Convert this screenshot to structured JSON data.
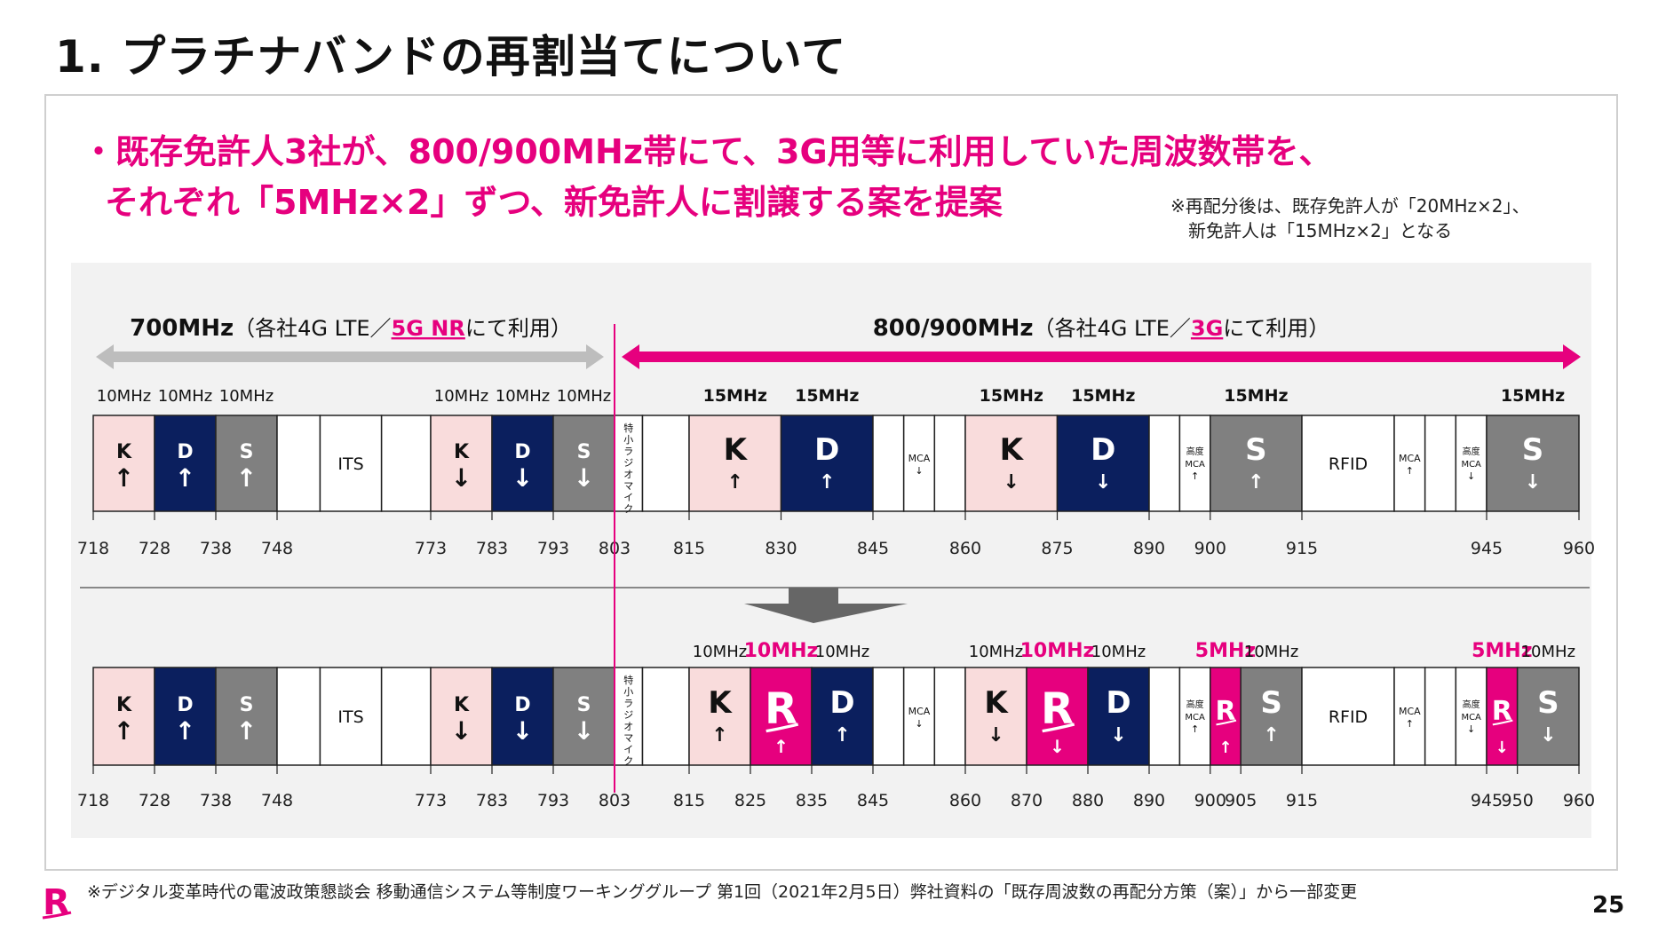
{
  "title": "1. プラチナバンドの再割当てについて",
  "lead": {
    "line1": "・既存免許人3社が、800/900MHz帯にて、3G用等に利用していた周波数帯を、",
    "line2": "それぞれ「5MHz×2」ずつ、新免許人に割譲する案を提案"
  },
  "note": {
    "line1": "※再配分後は、既存免許人が「20MHz×2」、",
    "line2": "新免許人は「15MHz×2」となる"
  },
  "band700": {
    "name": "700MHz",
    "pre": "（各社4G LTE／",
    "highlight": "5G NR",
    "post": "にて利用）"
  },
  "band800": {
    "name": "800/900MHz",
    "pre": "（各社4G LTE／",
    "highlight": "3G",
    "post": "にて利用）"
  },
  "colors": {
    "K": "#f9dcdc",
    "D": "#0b1f5e",
    "S": "#808080",
    "R": "#e6007e",
    "white": "#ffffff",
    "accent": "#e6007e",
    "gray_arrow": "#bdbdbd"
  },
  "mic_label": "特小ラジオマイク",
  "top_row": {
    "blocks": [
      {
        "s": 718,
        "e": 728,
        "t": "K",
        "l": "K",
        "a": "↑"
      },
      {
        "s": 728,
        "e": 738,
        "t": "D",
        "l": "D",
        "a": "↑"
      },
      {
        "s": 738,
        "e": 748,
        "t": "S",
        "l": "S",
        "a": "↑"
      },
      {
        "s": 748,
        "e": 755,
        "t": "W",
        "l": ""
      },
      {
        "s": 755,
        "e": 765,
        "t": "W",
        "l": "ITS"
      },
      {
        "s": 765,
        "e": 773,
        "t": "W",
        "l": ""
      },
      {
        "s": 773,
        "e": 783,
        "t": "K",
        "l": "K",
        "a": "↓"
      },
      {
        "s": 783,
        "e": 793,
        "t": "D",
        "l": "D",
        "a": "↓"
      },
      {
        "s": 793,
        "e": 803,
        "t": "S",
        "l": "S",
        "a": "↓"
      },
      {
        "s": 803,
        "e": 807.5,
        "t": "MIC"
      },
      {
        "s": 807.5,
        "e": 815,
        "t": "W",
        "l": ""
      },
      {
        "s": 815,
        "e": 830,
        "t": "K",
        "l": "K",
        "a": "↑",
        "big": true
      },
      {
        "s": 830,
        "e": 845,
        "t": "D",
        "l": "D",
        "a": "↑",
        "big": true
      },
      {
        "s": 845,
        "e": 850,
        "t": "W",
        "l": ""
      },
      {
        "s": 850,
        "e": 855,
        "t": "W",
        "l": "MCA",
        "a": "↓",
        "small": true
      },
      {
        "s": 855,
        "e": 860,
        "t": "W",
        "l": ""
      },
      {
        "s": 860,
        "e": 875,
        "t": "K",
        "l": "K",
        "a": "↓",
        "big": true
      },
      {
        "s": 875,
        "e": 890,
        "t": "D",
        "l": "D",
        "a": "↓",
        "big": true
      },
      {
        "s": 890,
        "e": 895,
        "t": "W",
        "l": ""
      },
      {
        "s": 895,
        "e": 900,
        "t": "W",
        "l": "高度|MCA",
        "a": "↑",
        "small": true
      },
      {
        "s": 900,
        "e": 915,
        "t": "S",
        "l": "S",
        "a": "↑",
        "big": true
      },
      {
        "s": 915,
        "e": 930,
        "t": "W",
        "l": "RFID"
      },
      {
        "s": 930,
        "e": 935,
        "t": "W",
        "l": "MCA",
        "a": "↑",
        "small": true
      },
      {
        "s": 935,
        "e": 940,
        "t": "W",
        "l": ""
      },
      {
        "s": 940,
        "e": 945,
        "t": "W",
        "l": "高度|MCA",
        "a": "↓",
        "small": true
      },
      {
        "s": 945,
        "e": 960,
        "t": "S",
        "l": "S",
        "a": "↓",
        "big": true
      }
    ],
    "ticks": [
      718,
      728,
      738,
      748,
      773,
      783,
      793,
      803,
      815,
      830,
      845,
      860,
      875,
      890,
      900,
      915,
      945,
      960
    ],
    "widths": [
      {
        "f": 718,
        "t": 728,
        "l": "10MHz"
      },
      {
        "f": 728,
        "t": 738,
        "l": "10MHz"
      },
      {
        "f": 738,
        "t": 748,
        "l": "10MHz"
      },
      {
        "f": 773,
        "t": 783,
        "l": "10MHz"
      },
      {
        "f": 783,
        "t": 793,
        "l": "10MHz"
      },
      {
        "f": 793,
        "t": 803,
        "l": "10MHz"
      },
      {
        "f": 815,
        "t": 830,
        "l": "15MHz",
        "b": true
      },
      {
        "f": 830,
        "t": 845,
        "l": "15MHz",
        "b": true
      },
      {
        "f": 860,
        "t": 875,
        "l": "15MHz",
        "b": true
      },
      {
        "f": 875,
        "t": 890,
        "l": "15MHz",
        "b": true
      },
      {
        "f": 900,
        "t": 915,
        "l": "15MHz",
        "b": true
      },
      {
        "f": 945,
        "t": 960,
        "l": "15MHz",
        "b": true
      }
    ]
  },
  "bottom_row": {
    "blocks": [
      {
        "s": 718,
        "e": 728,
        "t": "K",
        "l": "K",
        "a": "↑"
      },
      {
        "s": 728,
        "e": 738,
        "t": "D",
        "l": "D",
        "a": "↑"
      },
      {
        "s": 738,
        "e": 748,
        "t": "S",
        "l": "S",
        "a": "↑"
      },
      {
        "s": 748,
        "e": 755,
        "t": "W",
        "l": ""
      },
      {
        "s": 755,
        "e": 765,
        "t": "W",
        "l": "ITS"
      },
      {
        "s": 765,
        "e": 773,
        "t": "W",
        "l": ""
      },
      {
        "s": 773,
        "e": 783,
        "t": "K",
        "l": "K",
        "a": "↓"
      },
      {
        "s": 783,
        "e": 793,
        "t": "D",
        "l": "D",
        "a": "↓"
      },
      {
        "s": 793,
        "e": 803,
        "t": "S",
        "l": "S",
        "a": "↓"
      },
      {
        "s": 803,
        "e": 807.5,
        "t": "MIC"
      },
      {
        "s": 807.5,
        "e": 815,
        "t": "W",
        "l": ""
      },
      {
        "s": 815,
        "e": 825,
        "t": "K",
        "l": "K",
        "a": "↑",
        "big": true
      },
      {
        "s": 825,
        "e": 835,
        "t": "R",
        "l": "R",
        "a": "↑",
        "big": true
      },
      {
        "s": 835,
        "e": 845,
        "t": "D",
        "l": "D",
        "a": "↑",
        "big": true
      },
      {
        "s": 845,
        "e": 850,
        "t": "W",
        "l": ""
      },
      {
        "s": 850,
        "e": 855,
        "t": "W",
        "l": "MCA",
        "a": "↓",
        "small": true
      },
      {
        "s": 855,
        "e": 860,
        "t": "W",
        "l": ""
      },
      {
        "s": 860,
        "e": 870,
        "t": "K",
        "l": "K",
        "a": "↓",
        "big": true
      },
      {
        "s": 870,
        "e": 880,
        "t": "R",
        "l": "R",
        "a": "↓",
        "big": true
      },
      {
        "s": 880,
        "e": 890,
        "t": "D",
        "l": "D",
        "a": "↓",
        "big": true
      },
      {
        "s": 890,
        "e": 895,
        "t": "W",
        "l": ""
      },
      {
        "s": 895,
        "e": 900,
        "t": "W",
        "l": "高度|MCA",
        "a": "↑",
        "small": true
      },
      {
        "s": 900,
        "e": 905,
        "t": "R",
        "l": "R",
        "a": "↑"
      },
      {
        "s": 905,
        "e": 915,
        "t": "S",
        "l": "S",
        "a": "↑",
        "big": true
      },
      {
        "s": 915,
        "e": 930,
        "t": "W",
        "l": "RFID"
      },
      {
        "s": 930,
        "e": 935,
        "t": "W",
        "l": "MCA",
        "a": "↑",
        "small": true
      },
      {
        "s": 935,
        "e": 940,
        "t": "W",
        "l": ""
      },
      {
        "s": 940,
        "e": 945,
        "t": "W",
        "l": "高度|MCA",
        "a": "↓",
        "small": true
      },
      {
        "s": 945,
        "e": 950,
        "t": "R",
        "l": "R",
        "a": "↓"
      },
      {
        "s": 950,
        "e": 960,
        "t": "S",
        "l": "S",
        "a": "↓",
        "big": true
      }
    ],
    "ticks": [
      718,
      728,
      738,
      748,
      773,
      783,
      793,
      803,
      815,
      825,
      835,
      845,
      860,
      870,
      880,
      890,
      900,
      905,
      915,
      945,
      950,
      960
    ],
    "widths": [
      {
        "f": 815,
        "t": 825,
        "l": "10MHz"
      },
      {
        "f": 825,
        "t": 835,
        "l": "10MHz",
        "p": true
      },
      {
        "f": 835,
        "t": 845,
        "l": "10MHz"
      },
      {
        "f": 860,
        "t": 870,
        "l": "10MHz"
      },
      {
        "f": 870,
        "t": 880,
        "l": "10MHz",
        "p": true
      },
      {
        "f": 880,
        "t": 890,
        "l": "10MHz"
      },
      {
        "f": 900,
        "t": 905,
        "l": "5MHz",
        "p": true
      },
      {
        "f": 905,
        "t": 915,
        "l": "10MHz"
      },
      {
        "f": 945,
        "t": 950,
        "l": "5MHz",
        "p": true
      },
      {
        "f": 950,
        "t": 960,
        "l": "10MHz"
      }
    ]
  },
  "footer": "※デジタル変革時代の電波政策懇談会 移動通信システム等制度ワーキンググループ 第1回（2021年2月5日）弊社資料の「既存周波数の再配分方策（案）」から一部変更",
  "page_number": "25",
  "logo_letter": "R"
}
